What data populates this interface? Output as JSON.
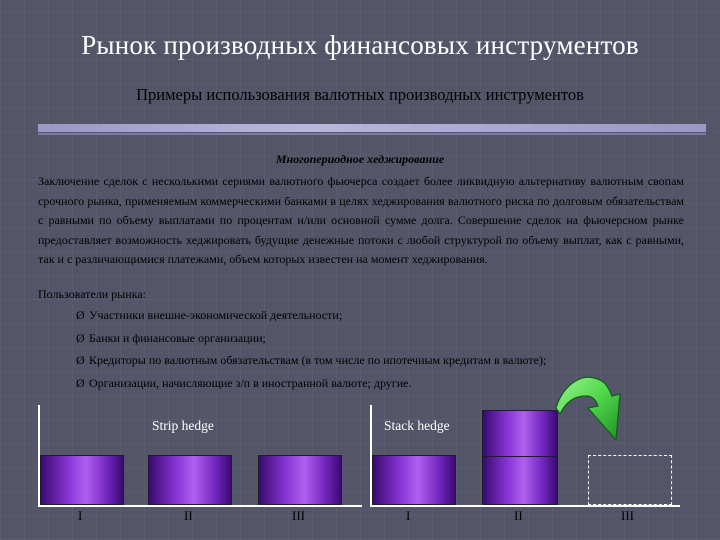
{
  "slide": {
    "title": "Рынок производных финансовых инструментов",
    "subtitle": "Примеры использования валютных производных инструментов",
    "heading": "Многопериодное хеджирование",
    "body": "Заключение сделок с несколькими сериями валютного фьючерса создает более ликвидную альтернативу валютным свопам срочного рынка, применяемым коммерческими банками в целях хеджирования валютного риска по долговым обязательствам с равными по объему выплатами по процентам и/или основной сумме долга. Совершение сделок на фьючерсном рынке предоставляет возможность хеджировать будущие денежные потоки с любой структурой по объему выплат, как с равными, так и с различающимися платежами, объем которых известен на момент хеджирования.",
    "users_label": "Пользователи рынка:",
    "bullet_mark": "Ø",
    "bullets": [
      "Участники внешне-экономической деятельности;",
      "Банки и финансовые организации;",
      "Кредиторы по валютным обязательствам (в том числе по ипотечным кредитам в валюте);",
      "Организации, начисляющие з/п в иностранной валюте; другие."
    ]
  },
  "diagram": {
    "strip": {
      "label": "Strip hedge",
      "periods": [
        "I",
        "II",
        "III"
      ],
      "contracts": [
        1,
        1,
        1
      ]
    },
    "stack": {
      "label": "Stack hedge",
      "periods": [
        "I",
        "II",
        "III"
      ],
      "contracts": [
        1,
        2,
        0
      ],
      "moved_contract_period": "III"
    },
    "colors": {
      "bar_dark": "#3a0a70",
      "bar_light": "#b060f0",
      "arrow": "#4fd64a",
      "background": "#55556a"
    },
    "icons": [
      "curved-arrow-icon"
    ]
  }
}
